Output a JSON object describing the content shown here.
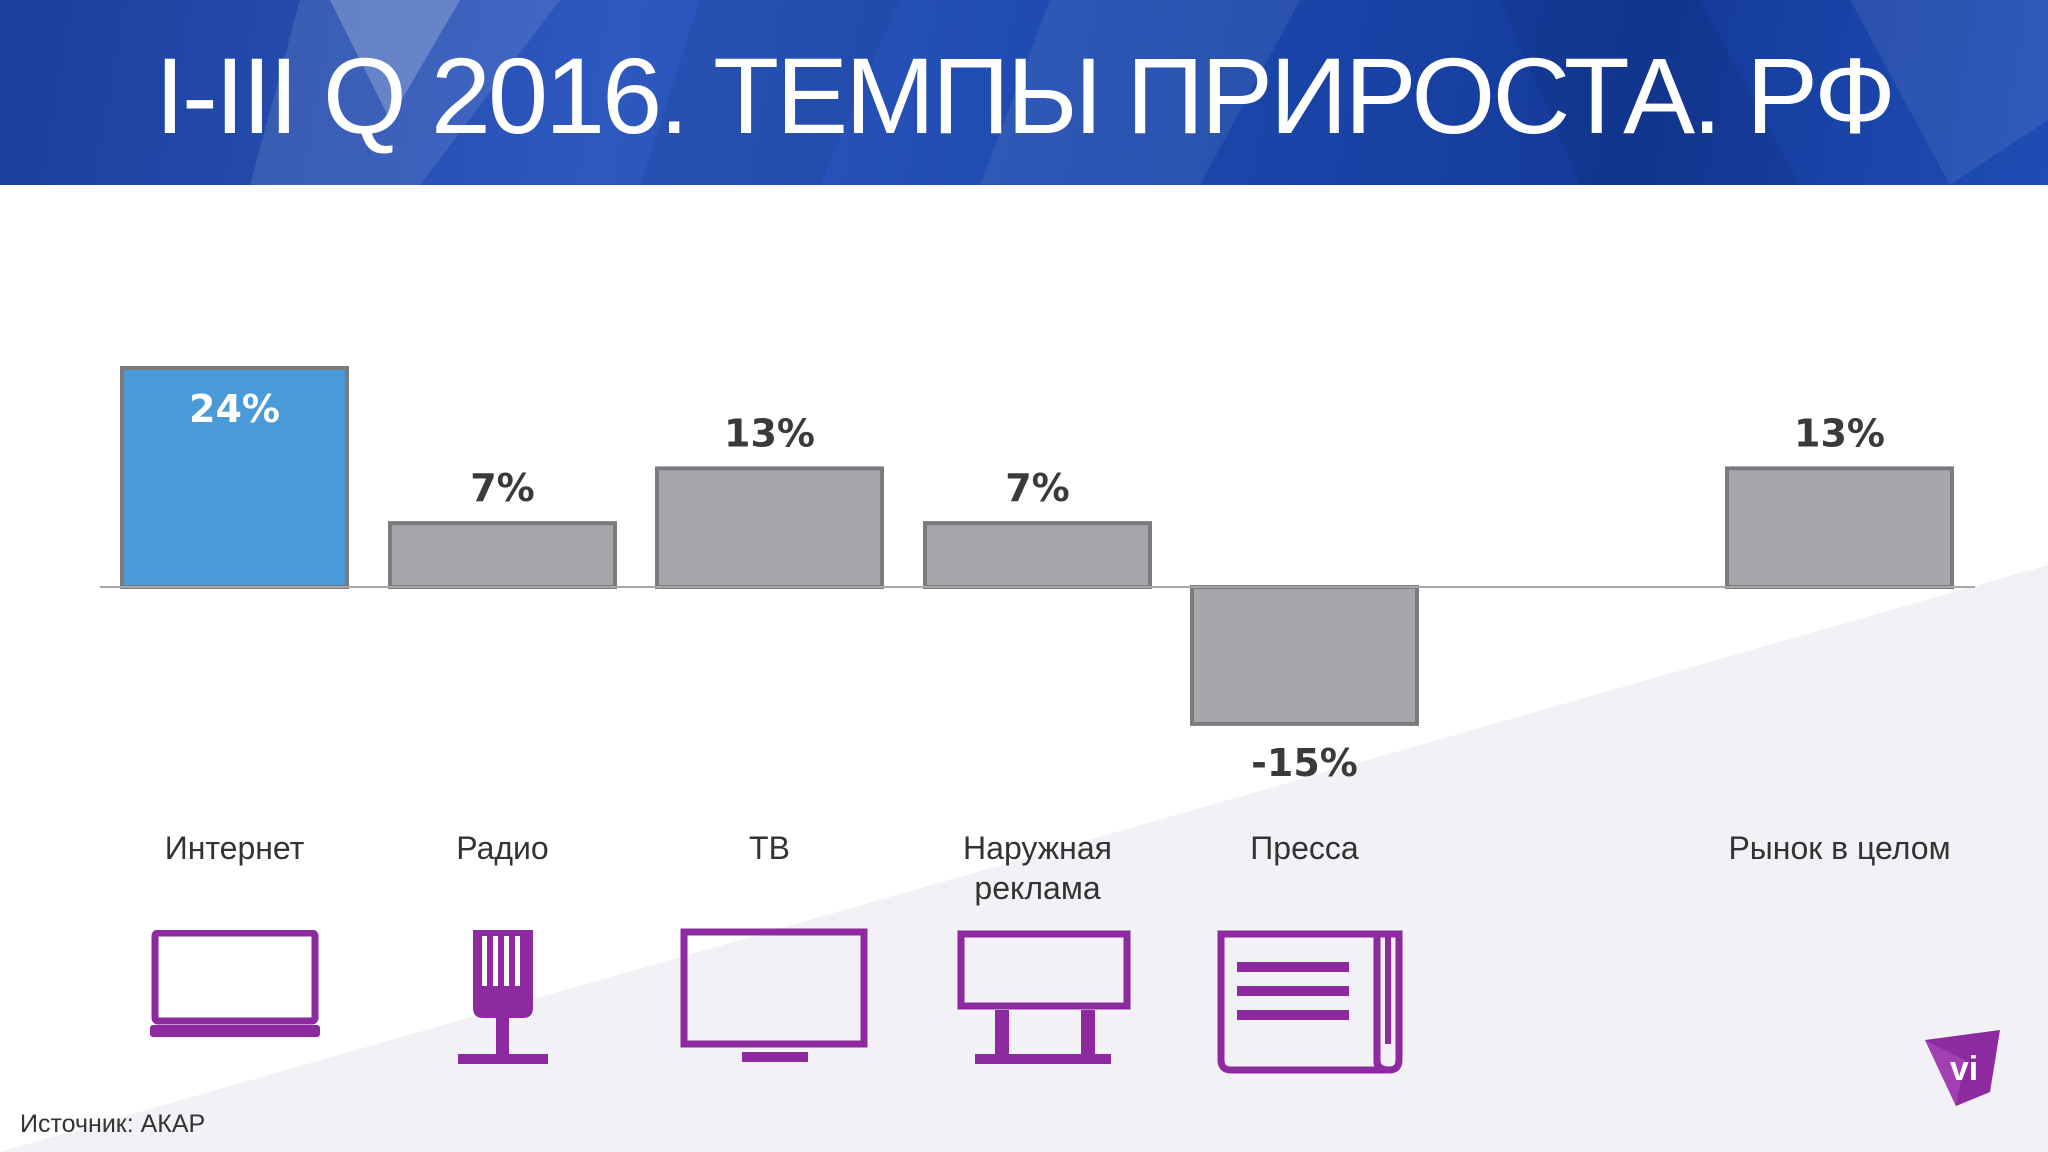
{
  "header": {
    "title": "I-III Q 2016. ТЕМПЫ ПРИРОСТА. РФ"
  },
  "chart_data": {
    "type": "bar",
    "title": "I-III Q 2016. ТЕМПЫ ПРИРОСТА. РФ",
    "categories": [
      "Интернет",
      "Радио",
      "ТВ",
      "Наружная реклама",
      "Пресса",
      "Рынок в целом"
    ],
    "values": [
      24,
      7,
      13,
      7,
      -15,
      13
    ],
    "data_labels": [
      "24%",
      "7%",
      "13%",
      "7%",
      "-15%",
      "13%"
    ],
    "unit": "%",
    "highlight_index": 0,
    "colors": {
      "highlight": "#4a9ad8",
      "bar": "#a7a6aa",
      "bar_border": "#7b7b7f",
      "icon": "#8d2aa0"
    },
    "grid": false,
    "legend": "none"
  },
  "categories_display": [
    {
      "label": "Интернет",
      "icon": "laptop-icon"
    },
    {
      "label": "Радио",
      "icon": "microphone-icon"
    },
    {
      "label": "ТВ",
      "icon": "tv-icon"
    },
    {
      "label": "Наружная\nреклама",
      "icon": "billboard-icon"
    },
    {
      "label": "Пресса",
      "icon": "newspaper-icon"
    },
    {
      "label": "Рынок в целом",
      "icon": ""
    }
  ],
  "footer": {
    "source": "Источник: АКАР",
    "logo_text": "vi"
  }
}
